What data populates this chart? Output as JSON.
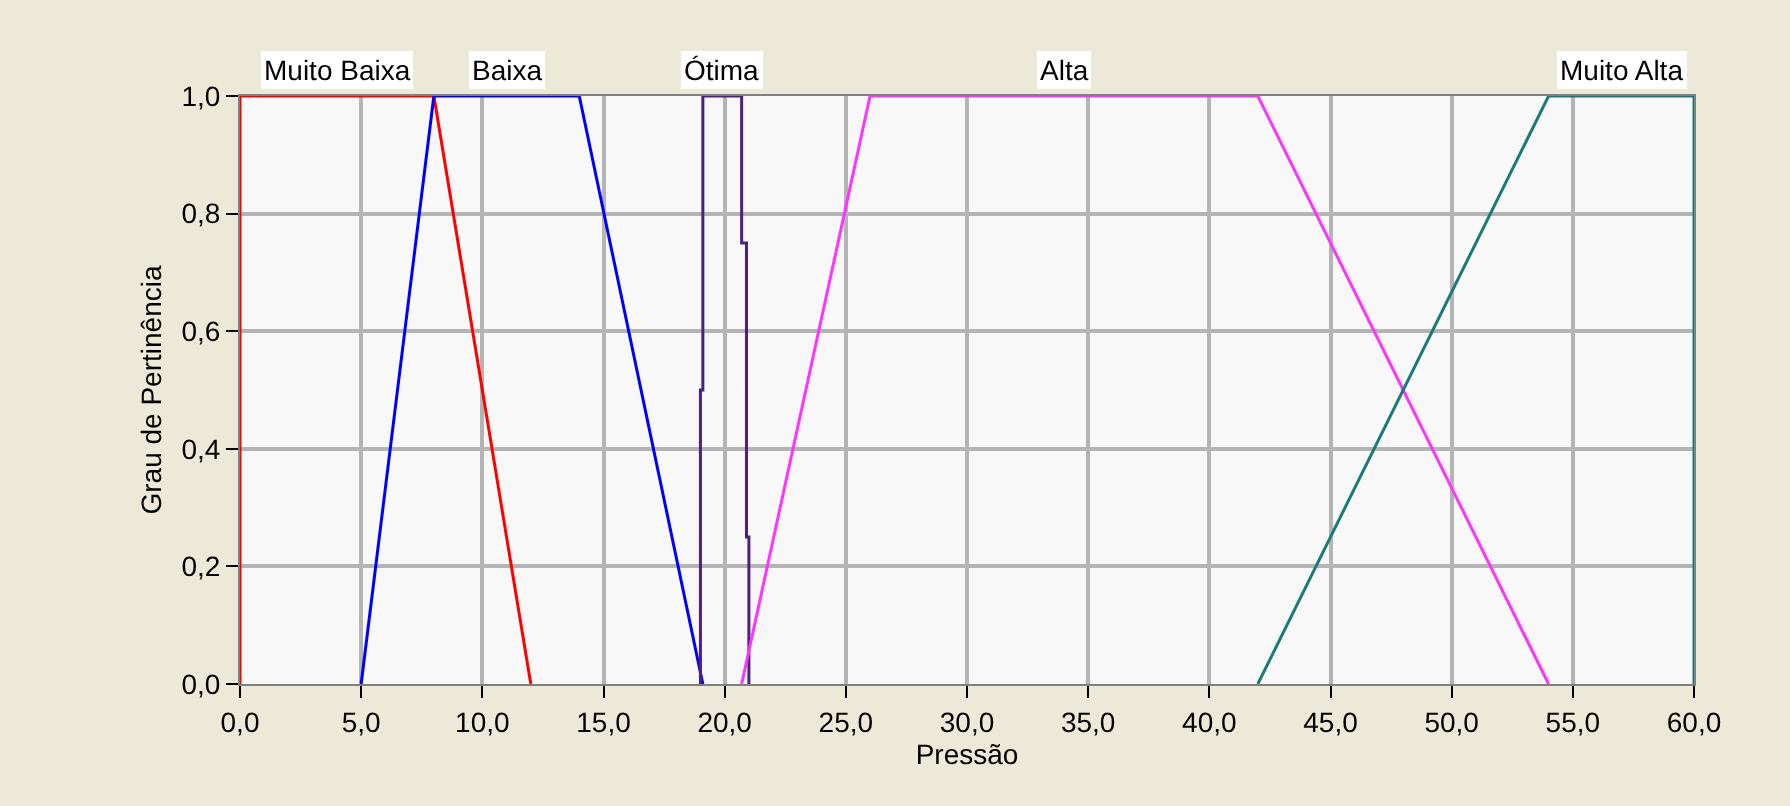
{
  "chart_data": {
    "type": "line",
    "xlabel": "Pressão",
    "ylabel": "Grau de Pertinência",
    "xlim": [
      0,
      60
    ],
    "ylim": [
      0,
      1
    ],
    "xticks": [
      {
        "value": 0,
        "label": "0,0"
      },
      {
        "value": 5,
        "label": "5,0"
      },
      {
        "value": 10,
        "label": "10,0"
      },
      {
        "value": 15,
        "label": "15,0"
      },
      {
        "value": 20,
        "label": "20,0"
      },
      {
        "value": 25,
        "label": "25,0"
      },
      {
        "value": 30,
        "label": "30,0"
      },
      {
        "value": 35,
        "label": "35,0"
      },
      {
        "value": 40,
        "label": "40,0"
      },
      {
        "value": 45,
        "label": "45,0"
      },
      {
        "value": 50,
        "label": "50,0"
      },
      {
        "value": 55,
        "label": "55,0"
      },
      {
        "value": 60,
        "label": "60,0"
      }
    ],
    "yticks": [
      {
        "value": 0,
        "label": "0,0"
      },
      {
        "value": 0.2,
        "label": "0,2"
      },
      {
        "value": 0.4,
        "label": "0,4"
      },
      {
        "value": 0.6,
        "label": "0,6"
      },
      {
        "value": 0.8,
        "label": "0,8"
      },
      {
        "value": 1,
        "label": "1,0"
      }
    ],
    "grid": true,
    "legend": false,
    "marker": "none",
    "line_style": "solid",
    "series": [
      {
        "name": "Muito Baixa",
        "color": "#ff0000",
        "x": [
          0,
          0,
          8,
          12
        ],
        "values": [
          0,
          1,
          1,
          0
        ]
      },
      {
        "name": "Baixa",
        "color": "#0000ff",
        "x": [
          5,
          8,
          14,
          19.1
        ],
        "values": [
          0,
          1,
          1,
          0
        ]
      },
      {
        "name": "Ótima",
        "color": "#4b2080",
        "x": [
          19,
          19,
          19.1,
          19.1,
          20.7,
          20.7,
          20.9,
          20.9,
          21,
          21
        ],
        "values": [
          0,
          0.5,
          0.5,
          1,
          1,
          0.75,
          0.75,
          0.25,
          0.25,
          0
        ]
      },
      {
        "name": "Alta",
        "color": "#ff33ff",
        "x": [
          20.7,
          26,
          42,
          54
        ],
        "values": [
          0,
          1,
          1,
          0
        ]
      },
      {
        "name": "Muito Alta",
        "color": "#1a7a7a",
        "x": [
          42,
          54,
          60,
          60
        ],
        "values": [
          0,
          1,
          1,
          0
        ]
      }
    ]
  }
}
